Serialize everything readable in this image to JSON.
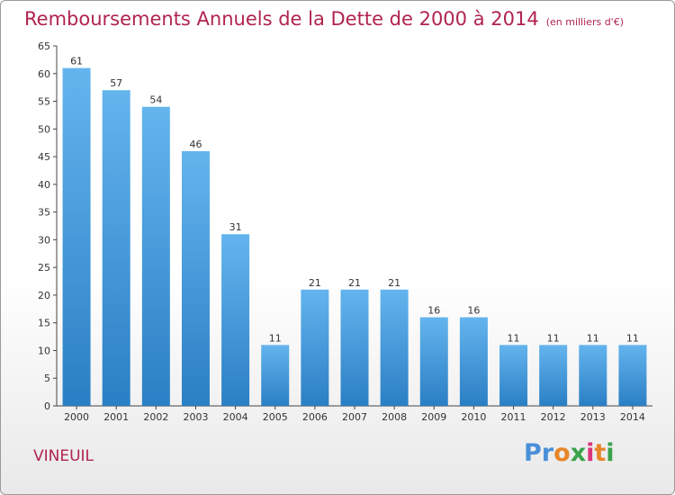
{
  "header": {
    "title": "Remboursements Annuels de la Dette de 2000 à 2014",
    "unit": "(en milliers d'€)"
  },
  "footer": {
    "commune": "VINEUIL",
    "logo": "Proxiti"
  },
  "colors": {
    "title": "#b0244e",
    "bar_top": "#64b4ee",
    "bar_bottom": "#2a7fc4"
  },
  "chart_data": {
    "type": "bar",
    "title": "Remboursements Annuels de la Dette de 2000 à 2014",
    "xlabel": "",
    "ylabel": "",
    "categories": [
      "2000",
      "2001",
      "2002",
      "2003",
      "2004",
      "2005",
      "2006",
      "2007",
      "2008",
      "2009",
      "2010",
      "2011",
      "2012",
      "2013",
      "2014"
    ],
    "values": [
      61,
      57,
      54,
      46,
      31,
      11,
      21,
      21,
      21,
      16,
      16,
      11,
      11,
      11,
      11
    ],
    "ylim": [
      0,
      65
    ],
    "yticks": [
      0,
      5,
      10,
      15,
      20,
      25,
      30,
      35,
      40,
      45,
      50,
      55,
      60,
      65
    ],
    "grid": false,
    "data_labels": true
  }
}
